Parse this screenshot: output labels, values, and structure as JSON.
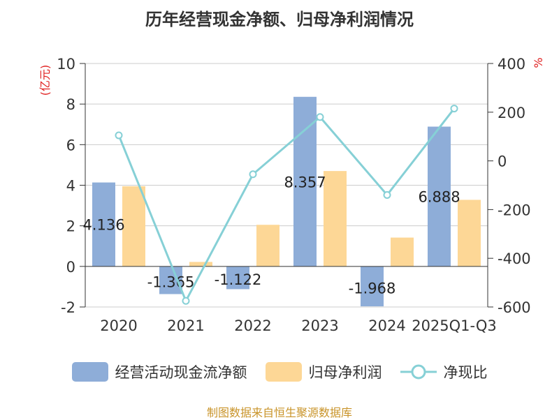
{
  "title": "历年经营现金净额、归母净利润情况",
  "source": "制图数据来自恒生聚源数据库",
  "colors": {
    "bar1": "#8eadd8",
    "bar2": "#fdd796",
    "line": "#86d0d6",
    "axis_left_label": "#e02020",
    "source": "#c9942a"
  },
  "chart_data": {
    "type": "bar",
    "categories": [
      "2020",
      "2021",
      "2022",
      "2023",
      "2024",
      "2025Q1-Q3"
    ],
    "series": [
      {
        "name": "经营活动现金流净额",
        "type": "bar",
        "values": [
          4.136,
          -1.365,
          -1.122,
          8.357,
          -1.968,
          6.888
        ],
        "labels": [
          "4.136",
          "-1.365",
          "-1.122",
          "8.357",
          "-1.968",
          "6.888"
        ]
      },
      {
        "name": "归母净利润",
        "type": "bar",
        "values": [
          3.95,
          0.22,
          2.05,
          4.7,
          1.42,
          3.28
        ]
      },
      {
        "name": "净现比",
        "type": "line",
        "axis": "right",
        "values": [
          105,
          -575,
          -55,
          180,
          -140,
          215
        ]
      }
    ],
    "y_left": {
      "label": "(亿元)",
      "ticks": [
        "10",
        "8",
        "6",
        "4",
        "2",
        "0",
        "-2"
      ],
      "range": [
        -2,
        10
      ]
    },
    "y_right": {
      "label": "%",
      "ticks": [
        "400",
        "200",
        "0",
        "-200",
        "-400",
        "-600"
      ],
      "range": [
        -600,
        400
      ]
    },
    "legend_position": "bottom",
    "grid": true
  }
}
